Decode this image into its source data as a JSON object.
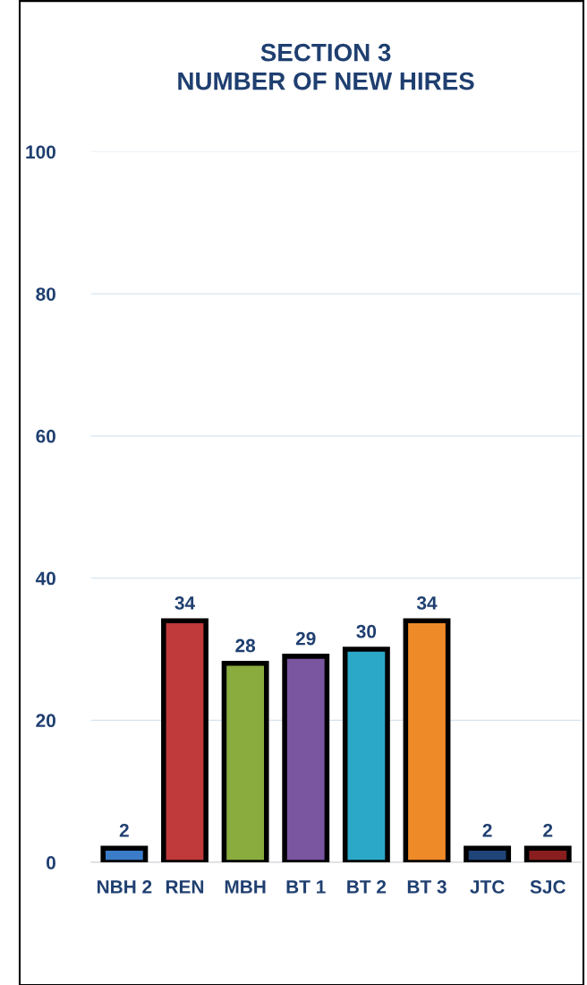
{
  "chart_data": {
    "type": "bar",
    "title": "SECTION 3\nNUMBER OF NEW HIRES",
    "categories": [
      "NBH 2",
      "REN",
      "MBH",
      "BT 1",
      "BT 2",
      "BT 3",
      "JTC",
      "SJC"
    ],
    "values": [
      2,
      34,
      28,
      29,
      30,
      34,
      2,
      2
    ],
    "colors": [
      "#3a7cc8",
      "#c0393b",
      "#8aac3e",
      "#7a55a0",
      "#2ba8c8",
      "#ef8a28",
      "#1f4478",
      "#8a1e1e"
    ],
    "ylim": [
      0,
      100
    ],
    "yticks": [
      0,
      20,
      40,
      60,
      80,
      100
    ],
    "grid": "y",
    "data_labels": true
  }
}
